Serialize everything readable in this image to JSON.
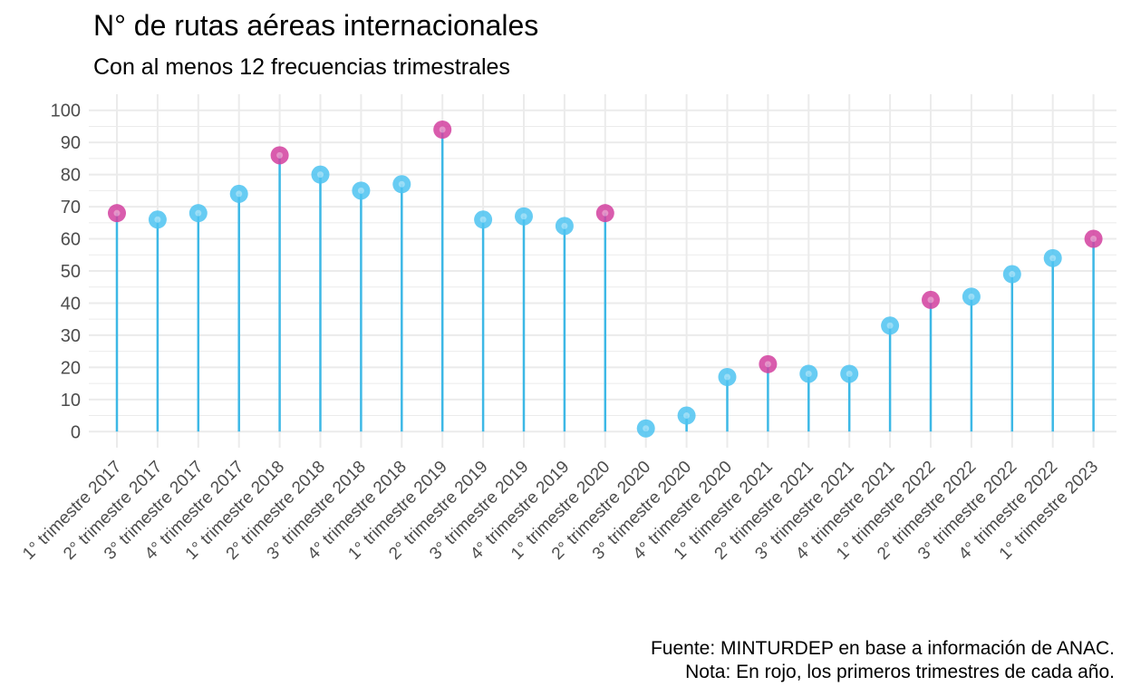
{
  "chart_data": {
    "type": "lollipop",
    "title": "N° de rutas aéreas internacionales",
    "subtitle": "Con al menos 12 frecuencias trimestrales",
    "caption_lines": [
      "Fuente: MINTURDEP en base a información de ANAC.",
      "Nota: En rojo, los primeros trimestres de cada año."
    ],
    "categories": [
      "1° trimestre 2017",
      "2° trimestre 2017",
      "3° trimestre 2017",
      "4° trimestre 2017",
      "1° trimestre 2018",
      "2° trimestre 2018",
      "3° trimestre 2018",
      "4° trimestre 2018",
      "1° trimestre 2019",
      "2° trimestre 2019",
      "3° trimestre 2019",
      "4° trimestre 2019",
      "1° trimestre 2020",
      "2° trimestre 2020",
      "3° trimestre 2020",
      "4° trimestre 2020",
      "1° trimestre 2021",
      "2° trimestre 2021",
      "3° trimestre 2021",
      "4° trimestre 2021",
      "1° trimestre 2022",
      "2° trimestre 2022",
      "3° trimestre 2022",
      "4° trimestre 2022",
      "1° trimestre 2023"
    ],
    "values": [
      68,
      66,
      68,
      74,
      86,
      80,
      75,
      77,
      94,
      66,
      67,
      64,
      68,
      1,
      5,
      17,
      21,
      18,
      18,
      33,
      41,
      42,
      49,
      54,
      60
    ],
    "highlight": [
      true,
      false,
      false,
      false,
      true,
      false,
      false,
      false,
      true,
      false,
      false,
      false,
      true,
      false,
      false,
      false,
      true,
      false,
      false,
      false,
      true,
      false,
      false,
      false,
      true
    ],
    "ylim": [
      -5,
      105
    ],
    "yticks": [
      0,
      10,
      20,
      30,
      40,
      50,
      60,
      70,
      80,
      90,
      100
    ],
    "grid": true,
    "legend": "none",
    "colors": {
      "default": "#4cc3f1",
      "highlight": "#d23f9f",
      "stem": "#3db8e6",
      "grid": "#ebebeb"
    }
  }
}
